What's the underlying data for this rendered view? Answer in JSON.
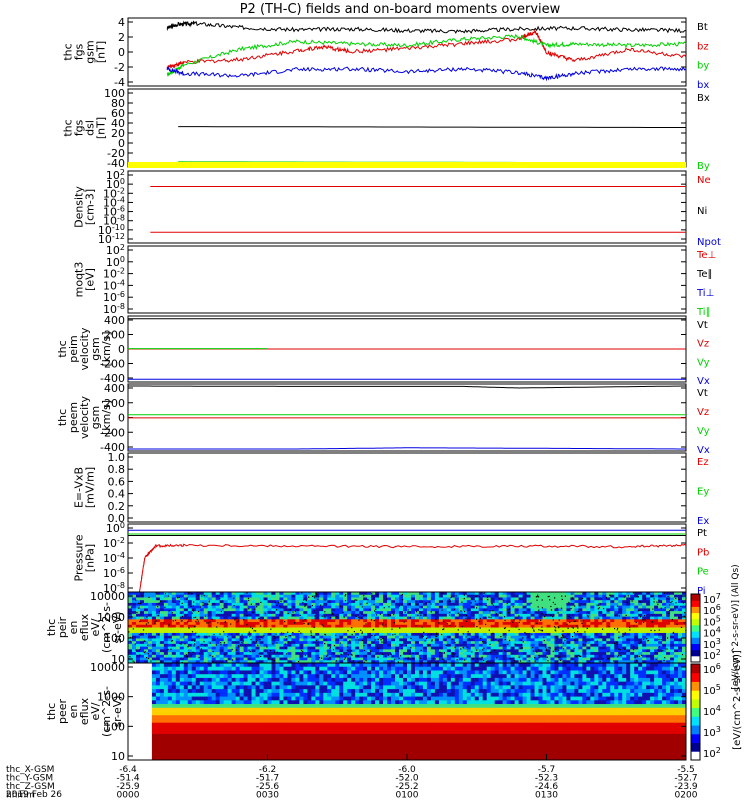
{
  "title": "P2 (TH-C) fields and on-board moments overview",
  "colors": {
    "black": "#000000",
    "red": "#e00000",
    "green": "#00d000",
    "blue": "#0000e0",
    "yellow": "#ffff00"
  },
  "chart_data": [
    {
      "type": "line",
      "ylabel": [
        "thc",
        "fgs",
        "gsm",
        "[nT]"
      ],
      "yticks": [
        4,
        2,
        0,
        -2,
        -4
      ],
      "ylim": [
        -4.2,
        4.5
      ],
      "series": [
        {
          "name": "Bt",
          "color": "black",
          "x": [
            0.07,
            0.09,
            0.12,
            0.2,
            0.3,
            0.4,
            0.5,
            0.6,
            0.7,
            0.8,
            0.9,
            1.0
          ],
          "values": [
            3.2,
            3.7,
            3.8,
            3.3,
            3.0,
            3.1,
            2.9,
            2.8,
            3.1,
            3.2,
            3.0,
            2.9
          ]
        },
        {
          "name": "bz",
          "color": "red",
          "x": [
            0.07,
            0.1,
            0.2,
            0.3,
            0.35,
            0.4,
            0.5,
            0.6,
            0.7,
            0.73,
            0.75,
            0.8,
            0.9,
            1.0
          ],
          "values": [
            -1.8,
            -1.2,
            -0.8,
            0.3,
            0.8,
            0.2,
            0.6,
            1.2,
            1.8,
            2.8,
            0.1,
            -1.0,
            0.5,
            -0.5
          ]
        },
        {
          "name": "by",
          "color": "green",
          "x": [
            0.07,
            0.1,
            0.2,
            0.3,
            0.4,
            0.5,
            0.6,
            0.7,
            0.75,
            0.8,
            0.9,
            1.0
          ],
          "values": [
            -2.8,
            -1.5,
            0.5,
            1.5,
            1.2,
            1.0,
            1.8,
            2.2,
            1.0,
            1.2,
            1.0,
            1.2
          ]
        },
        {
          "name": "bx",
          "color": "blue",
          "x": [
            0.07,
            0.1,
            0.2,
            0.3,
            0.4,
            0.5,
            0.6,
            0.7,
            0.75,
            0.8,
            0.9,
            1.0
          ],
          "values": [
            -2.0,
            -2.6,
            -2.9,
            -2.1,
            -2.0,
            -2.4,
            -2.0,
            -2.5,
            -3.2,
            -2.6,
            -2.0,
            -2.0
          ]
        }
      ]
    },
    {
      "type": "line",
      "ylabel": [
        "thc",
        "fgs",
        "dsl",
        "[nT]"
      ],
      "yticks": [
        100,
        80,
        60,
        40,
        20,
        0,
        -20,
        -40
      ],
      "ylim": [
        -58,
        108
      ],
      "series": [
        {
          "name": "Bx",
          "color": "black",
          "x": [
            0.09,
            1.0
          ],
          "values": [
            28,
            26
          ]
        },
        {
          "name": "By",
          "color": "green",
          "x": [
            0.09,
            1.0
          ],
          "values": [
            -47,
            -49
          ]
        }
      ]
    },
    {
      "type": "line",
      "ylabel": [
        "Density",
        "[cm-3]"
      ],
      "yticks": [
        "10^2",
        "10^0",
        "10^-2",
        "10^-4",
        "10^-6",
        "10^-8",
        "10^-10",
        "10^-12"
      ],
      "series": [
        {
          "name": "Ne",
          "color": "red",
          "x": [
            0.04,
            1.0
          ],
          "values": [
            0.3,
            0.3
          ]
        },
        {
          "name": "Ni",
          "color": "black",
          "x": [],
          "values": []
        },
        {
          "name": "Npot",
          "color": "blue",
          "x": [],
          "values": []
        }
      ]
    },
    {
      "type": "line",
      "ylabel": [
        "moqt3",
        "[eV]"
      ],
      "yticks": [
        "10^2",
        "10^0",
        "10^-2",
        "10^-4",
        "10^-6",
        "10^-8"
      ],
      "series": [
        {
          "name": "Te⊥",
          "color": "red",
          "x": [
            0.04,
            1.0
          ],
          "values": [
            5,
            5
          ]
        },
        {
          "name": "Te∥",
          "color": "black",
          "x": [],
          "values": []
        },
        {
          "name": "Ti⊥",
          "color": "blue",
          "x": [],
          "values": []
        },
        {
          "name": "Ti∥",
          "color": "green",
          "x": [],
          "values": []
        }
      ]
    },
    {
      "type": "line",
      "ylabel": [
        "thc",
        "peim",
        "velocity",
        "gsm",
        "[km/s]"
      ],
      "yticks": [
        400,
        200,
        0,
        -200,
        -400
      ],
      "ylim": [
        -420,
        420
      ],
      "series": [
        {
          "name": "Vt",
          "color": "black",
          "x": [
            0.0,
            1.0
          ],
          "values": [
            385,
            385
          ]
        },
        {
          "name": "Vz",
          "color": "red",
          "x": [
            0.0,
            1.0
          ],
          "values": [
            0,
            0
          ]
        },
        {
          "name": "Vy",
          "color": "green",
          "x": [
            0.0,
            0.25
          ],
          "values": [
            5,
            5
          ]
        },
        {
          "name": "Vx",
          "color": "blue",
          "x": [
            0.0,
            1.0
          ],
          "values": [
            -385,
            -385
          ]
        }
      ]
    },
    {
      "type": "line",
      "ylabel": [
        "thc",
        "peem",
        "velocity",
        "gsm",
        "[km/s]"
      ],
      "yticks": [
        400,
        200,
        0,
        -200,
        -400
      ],
      "ylim": [
        -420,
        420
      ],
      "series": [
        {
          "name": "Vt",
          "color": "black",
          "x": [
            0.0,
            0.3,
            0.6,
            0.7,
            1.0
          ],
          "values": [
            395,
            390,
            390,
            370,
            395
          ]
        },
        {
          "name": "Vz",
          "color": "red",
          "x": [
            0.0,
            1.0
          ],
          "values": [
            -5,
            -5
          ]
        },
        {
          "name": "Vy",
          "color": "green",
          "x": [
            0.0,
            1.0
          ],
          "values": [
            35,
            35
          ]
        },
        {
          "name": "Vx",
          "color": "blue",
          "x": [
            0.0,
            0.3,
            0.5,
            0.7,
            1.0
          ],
          "values": [
            -395,
            -395,
            -380,
            -385,
            -395
          ]
        }
      ]
    },
    {
      "type": "line",
      "ylabel": [
        "E=-VxB",
        "[mV/m]"
      ],
      "yticks": [
        "1.0",
        "0.8",
        "0.6",
        "0.4",
        "0.2",
        "0.0"
      ],
      "series": [
        {
          "name": "Ez",
          "color": "red",
          "x": [],
          "values": []
        },
        {
          "name": "Ey",
          "color": "green",
          "x": [],
          "values": []
        },
        {
          "name": "Ex",
          "color": "blue",
          "x": [],
          "values": []
        }
      ]
    },
    {
      "type": "line",
      "ylabel": [
        "Pressure",
        "[nPa]"
      ],
      "yticks": [
        "10^0",
        "10^-2",
        "10^-4",
        "10^-6",
        "10^-8"
      ],
      "series": [
        {
          "name": "Pt",
          "color": "black",
          "x": [
            0.0,
            1.0
          ],
          "values": [
            0.1,
            0.1
          ]
        },
        {
          "name": "Pb",
          "color": "red",
          "x": [
            0.02,
            0.03,
            0.05,
            0.1,
            0.3,
            0.5,
            0.7,
            0.9,
            1.0
          ],
          "values": [
            -8.8,
            -4,
            -2.4,
            -2.3,
            -2.4,
            -2.5,
            -2.4,
            -2.5,
            -2.3
          ]
        },
        {
          "name": "Pe",
          "color": "green",
          "x": [
            0.0,
            1.0
          ],
          "values": [
            -0.8,
            -0.8
          ]
        },
        {
          "name": "Pi",
          "color": "blue",
          "x": [
            0.0,
            1.0
          ],
          "values": [
            -0.3,
            -0.3
          ]
        }
      ]
    },
    {
      "type": "heatmap",
      "ylabel": [
        "thc",
        "peir",
        "en",
        "eflux",
        "eV/",
        "(cm^2-s-",
        "sr-eV)"
      ],
      "yticks": [
        "10000",
        "1000",
        "100",
        "10"
      ]
    },
    {
      "type": "heatmap",
      "ylabel": [
        "thc",
        "peer",
        "en",
        "eflux",
        "eV/",
        "(cm^2-s-",
        "sr-eV)"
      ],
      "yticks": [
        "10000",
        "1000",
        "100",
        "10"
      ]
    }
  ],
  "colorbar": {
    "ticks_top": [
      "10^7",
      "10^6",
      "10^5",
      "10^4",
      "10^3",
      "10^2"
    ],
    "ticks_bottom": [
      "10^6",
      "10^5",
      "10^4",
      "10^3",
      "10^2"
    ],
    "label": "[eV/(cm^2-s-sr-eV)]",
    "label_top": "[eV/(cm^2-s-sr-eV)] (All Qs)"
  },
  "xaxis": {
    "rows": [
      {
        "label": "thc_X-GSM",
        "values": [
          "-6.4",
          "-6.2",
          "-6.0",
          "-5.7",
          "-5.5"
        ]
      },
      {
        "label": "thc_Y-GSM",
        "values": [
          "-51.4",
          "-51.7",
          "-52.0",
          "-52.3",
          "-52.7"
        ]
      },
      {
        "label": "thc_Z-GSM",
        "values": [
          "-25.9",
          "-25.6",
          "-25.2",
          "-24.6",
          "-23.9"
        ]
      },
      {
        "label": "hhmm",
        "values": [
          "0000",
          "0030",
          "0100",
          "0130",
          "0200"
        ]
      }
    ],
    "date": "2019 Feb 26"
  }
}
